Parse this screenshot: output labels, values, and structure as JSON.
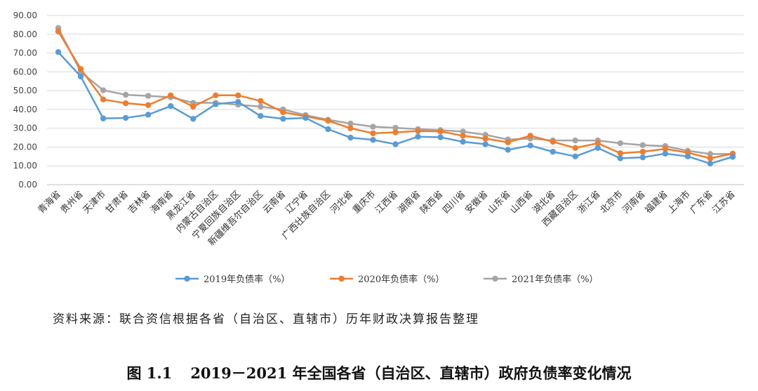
{
  "chart_data": {
    "type": "line",
    "ylim": [
      0,
      90
    ],
    "y_ticks": [
      "0.00",
      "10.00",
      "20.00",
      "30.00",
      "40.00",
      "50.00",
      "60.00",
      "70.00",
      "80.00",
      "90.00"
    ],
    "grid": true,
    "legend_position": "bottom",
    "categories": [
      "青海省",
      "贵州省",
      "天津市",
      "甘肃省",
      "吉林省",
      "海南省",
      "黑龙江省",
      "内蒙古自治区",
      "宁夏回族自治区",
      "新疆维吾尔自治区",
      "云南省",
      "辽宁省",
      "广西壮族自治区",
      "河北省",
      "重庆市",
      "江西省",
      "湖南省",
      "陕西省",
      "四川省",
      "安徽省",
      "山东省",
      "山西省",
      "湖北省",
      "西藏自治区",
      "浙江省",
      "北京市",
      "河南省",
      "福建省",
      "上海市",
      "广东省",
      "江苏省"
    ],
    "series": [
      {
        "name": "2019年负债率（%）",
        "color": "#5b9bd5",
        "values": [
          70.5,
          57.5,
          35.2,
          35.5,
          37.2,
          41.8,
          35.0,
          42.8,
          44.0,
          36.5,
          35.0,
          35.5,
          29.5,
          25.0,
          23.8,
          21.5,
          25.5,
          25.2,
          22.8,
          21.5,
          18.5,
          20.8,
          17.5,
          15.0,
          19.5,
          14.0,
          14.5,
          16.5,
          15.0,
          11.2,
          14.8
        ]
      },
      {
        "name": "2020年负债率（%）",
        "color": "#ed7d31",
        "values": [
          81.5,
          61.5,
          45.3,
          43.3,
          42.3,
          47.5,
          41.5,
          47.5,
          47.5,
          44.5,
          38.5,
          36.3,
          34.0,
          30.0,
          27.3,
          27.8,
          28.5,
          28.3,
          26.0,
          24.5,
          22.5,
          26.0,
          22.8,
          19.5,
          22.0,
          16.7,
          17.5,
          19.0,
          17.0,
          14.0,
          16.5
        ]
      },
      {
        "name": "2021年负债率（%）",
        "color": "#a5a5a5",
        "values": [
          83.3,
          60.0,
          50.2,
          47.8,
          47.2,
          46.5,
          43.5,
          43.5,
          42.5,
          41.5,
          40.0,
          37.0,
          34.5,
          32.5,
          30.8,
          30.2,
          29.5,
          29.0,
          28.2,
          26.5,
          24.0,
          24.5,
          23.5,
          23.5,
          23.5,
          22.0,
          21.0,
          20.5,
          18.0,
          16.3,
          16.3
        ]
      }
    ]
  },
  "source_note": "资料来源：联合资信根据各省（自治区、直辖市）历年财政决算报告整理",
  "caption": {
    "number": "图 1.1",
    "text": "2019－2021 年全国各省（自治区、直辖市）政府负债率变化情况"
  }
}
